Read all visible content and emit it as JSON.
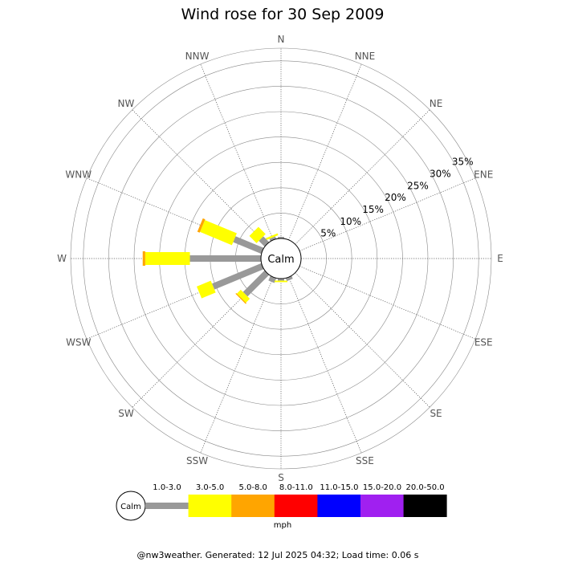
{
  "chart_data": {
    "type": "windrose",
    "title": "Wind rose for 30 Sep 2009",
    "directions": [
      "N",
      "NNE",
      "NE",
      "ENE",
      "E",
      "ESE",
      "SE",
      "SSE",
      "S",
      "SSW",
      "SW",
      "WSW",
      "W",
      "WNW",
      "NW",
      "NNW"
    ],
    "radial_ticks": [
      "5%",
      "10%",
      "15%",
      "20%",
      "25%",
      "30%",
      "35%"
    ],
    "radial_values": [
      5,
      10,
      15,
      20,
      25,
      30,
      35
    ],
    "radial_max": 37.5,
    "calm_label": "Calm",
    "speed_bins": [
      "1.0-3.0",
      "3.0-5.0",
      "5.0-8.0",
      "8.0-11.0",
      "11.0-15.0",
      "15.0-20.0",
      "20.0-50.0"
    ],
    "bin_colors": [
      "#999999",
      "#ffff00",
      "#ffa500",
      "#ff0000",
      "#0000ff",
      "#a020f0",
      "#000000"
    ],
    "unit": "mph",
    "series": [
      {
        "direction": "NNW",
        "values": [
          0.5,
          0.4,
          0,
          0,
          0,
          0,
          0
        ]
      },
      {
        "direction": "NW",
        "values": [
          1.6,
          2.0,
          0,
          0,
          0,
          0,
          0
        ]
      },
      {
        "direction": "WNW",
        "values": [
          6.0,
          6.8,
          0.5,
          0,
          0,
          0,
          0
        ]
      },
      {
        "direction": "W",
        "values": [
          14.0,
          8.8,
          0.5,
          0,
          0,
          0,
          0
        ]
      },
      {
        "direction": "WSW",
        "values": [
          10.5,
          3.0,
          0,
          0,
          0,
          0,
          0
        ]
      },
      {
        "direction": "SW",
        "values": [
          6.0,
          1.1,
          0.2,
          0,
          0,
          0,
          0
        ]
      },
      {
        "direction": "SSW",
        "values": [
          1.0,
          0,
          0,
          0,
          0,
          0,
          0
        ]
      },
      {
        "direction": "S",
        "values": [
          0.4,
          0.3,
          0,
          0,
          0,
          0,
          0
        ]
      },
      {
        "direction": "SSE",
        "values": [
          0.6,
          0,
          0,
          0,
          0,
          0,
          0
        ]
      },
      {
        "direction": "N",
        "values": [
          0.3,
          0,
          0,
          0,
          0,
          0,
          0
        ]
      }
    ]
  },
  "footer": "@nw3weather. Generated: 12 Jul 2025 04:32; Load time: 0.06 s"
}
